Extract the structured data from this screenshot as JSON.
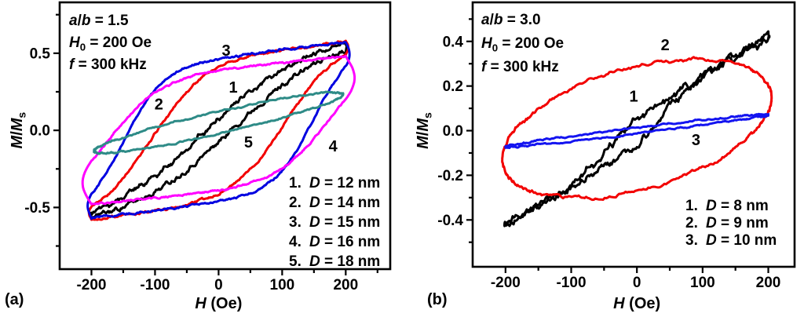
{
  "figure": {
    "background": "#ffffff",
    "panel_letters": [
      "(a)",
      "(b)"
    ]
  },
  "chart_data": [
    {
      "type": "line",
      "panel": "(a)",
      "xlabel": "*H* (Oe)",
      "ylabel": "*M*/*M*_s_",
      "xlim": [
        -250,
        270
      ],
      "ylim": [
        -0.9,
        0.83
      ],
      "xticks": [
        {
          "v": -200,
          "label": "-200"
        },
        {
          "v": -100,
          "label": "-100"
        },
        {
          "v": 0,
          "label": "0"
        },
        {
          "v": 100,
          "label": "100"
        },
        {
          "v": 200,
          "label": "200"
        }
      ],
      "xminor": [
        -150,
        -50,
        50,
        150,
        250
      ],
      "yticks": [
        {
          "v": 0.5,
          "label": "0.5"
        },
        {
          "v": 0,
          "label": "0.0"
        },
        {
          "v": -0.5,
          "label": "-0.5"
        }
      ],
      "yminor": [
        0.75,
        0.25,
        -0.25,
        -0.75
      ],
      "annotations": [
        "*a*/*b* = 1.5",
        "*H*_0_ = 200 Oe",
        "*f* = 300 kHz"
      ],
      "legend": [
        {
          "num": "1.",
          "text": "*D* = 12 nm"
        },
        {
          "num": "2.",
          "text": "*D* = 14 nm"
        },
        {
          "num": "3.",
          "text": "*D* = 15 nm"
        },
        {
          "num": "4.",
          "text": "*D* = 16 nm"
        },
        {
          "num": "5.",
          "text": "*D* = 18 nm"
        }
      ],
      "series": [
        {
          "number": "1",
          "label": "D = 12 nm",
          "color": "#000000",
          "shape": "loop",
          "Hmax": 200,
          "params": {
            "slope": 0.0005,
            "A": 0.52,
            "k": 0.0065,
            "Hc": 22
          },
          "tip_bulge": 0.008,
          "noise": 0.025,
          "seed": 11,
          "number_pos": [
            23,
            0.28
          ]
        },
        {
          "number": "2",
          "label": "D = 14 nm",
          "color": "#f20000",
          "shape": "loop",
          "Hmax": 200,
          "params": {
            "slope": 0.0005,
            "A": 0.48,
            "k": 0.012,
            "Hc": 105
          },
          "tip_bulge": 0.02,
          "noise": 0.012,
          "seed": 22,
          "number_pos": [
            -94,
            0.17
          ]
        },
        {
          "number": "3",
          "label": "D = 15 nm",
          "color": "#0000e0",
          "shape": "loop",
          "Hmax": 200,
          "params": {
            "slope": 0.0005,
            "A": 0.47,
            "k": 0.016,
            "Hc": 150
          },
          "tip_bulge": 0.03,
          "noise": 0.01,
          "seed": 33,
          "number_pos": [
            12,
            0.52
          ]
        },
        {
          "number": "4",
          "label": "D = 16 nm",
          "color": "#ff00ff",
          "shape": "loop",
          "Hmax": 200,
          "params": {
            "slope": 0.0004,
            "A": 0.4,
            "k": 0.012,
            "Hc": 174
          },
          "tip_bulge": 0.07,
          "noise": 0.009,
          "seed": 44,
          "number_pos": [
            180,
            -0.1
          ]
        },
        {
          "number": "5",
          "label": "D = 18 nm",
          "color": "#2e8b87",
          "shape": "ellipse",
          "Hmax": 196,
          "params": {
            "slope": 0.00094,
            "b": 0.072,
            "offset": 0.05
          },
          "noise": 0.008,
          "seed": 55,
          "number_pos": [
            47,
            -0.075
          ]
        }
      ]
    },
    {
      "type": "line",
      "panel": "(b)",
      "xlabel": "*H* (Oe)",
      "ylabel": "*M*/*M*_s_",
      "xlim": [
        -250,
        240
      ],
      "ylim": [
        -0.61,
        0.575
      ],
      "xticks": [
        {
          "v": -200,
          "label": "-200"
        },
        {
          "v": -100,
          "label": "-100"
        },
        {
          "v": 0,
          "label": "0"
        },
        {
          "v": 100,
          "label": "100"
        },
        {
          "v": 200,
          "label": "200"
        }
      ],
      "xminor": [
        -150,
        -50,
        50,
        150
      ],
      "yticks": [
        {
          "v": 0.4,
          "label": "0.4"
        },
        {
          "v": 0.2,
          "label": "0.2"
        },
        {
          "v": 0,
          "label": "0.0"
        },
        {
          "v": -0.2,
          "label": "-0.2"
        },
        {
          "v": -0.4,
          "label": "-0.4"
        }
      ],
      "yminor": [
        0.5,
        0.3,
        0.1,
        -0.1,
        -0.3,
        -0.5
      ],
      "annotations": [
        "*a*/*b* = 3.0",
        "*H*_0_ = 200 Oe",
        "*f* = 300 kHz"
      ],
      "legend": [
        {
          "num": "1.",
          "text": "*D* = 8 nm"
        },
        {
          "num": "2.",
          "text": "*D* = 9 nm"
        },
        {
          "num": "3.",
          "text": "*D* = 10 nm"
        }
      ],
      "series": [
        {
          "number": "1",
          "label": "D = 8 nm",
          "color": "#000000",
          "shape": "loop",
          "Hmax": 200,
          "params": {
            "slope": 0.0017,
            "A": 0.08,
            "k": 0.02,
            "Hc": 40
          },
          "tip_bulge": 0.008,
          "noise": 0.025,
          "seed": 66,
          "number_pos": [
            -5,
            0.155
          ]
        },
        {
          "number": "2",
          "label": "D = 9 nm",
          "color": "#f20000",
          "shape": "ellipse",
          "Hmax": 205,
          "params": {
            "slope": 0.00068,
            "b": 0.28,
            "offset": 0.01
          },
          "noise": 0.012,
          "seed": 77,
          "number_pos": [
            43,
            0.385
          ]
        },
        {
          "number": "3",
          "label": "D = 10 nm",
          "color": "#1414f0",
          "shape": "ellipse",
          "Hmax": 200,
          "params": {
            "slope": 0.00036,
            "b": 0.013,
            "offset": 0.0
          },
          "noise": 0.006,
          "seed": 88,
          "number_pos": [
            90,
            -0.04
          ]
        }
      ]
    }
  ]
}
